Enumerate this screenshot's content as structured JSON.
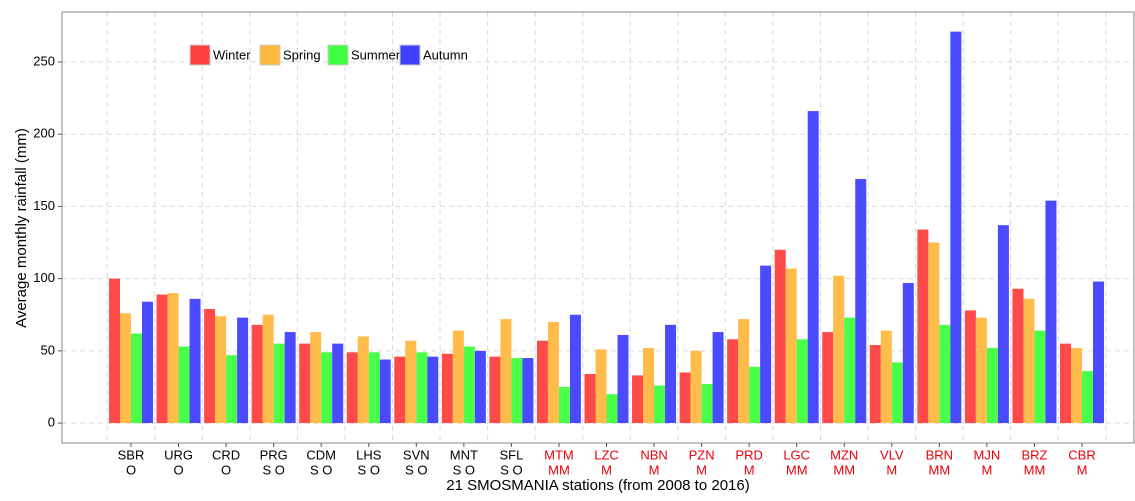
{
  "chart_data": {
    "type": "bar",
    "x_label": "21 SMOSMANIA stations (from 2008 to 2016)",
    "y_label": "Average monthly rainfall (mm)",
    "categories": [
      [
        "SBR",
        "O"
      ],
      [
        "URG",
        "O"
      ],
      [
        "CRD",
        "O"
      ],
      [
        "PRG",
        "S O"
      ],
      [
        "CDM",
        "S O"
      ],
      [
        "LHS",
        "S O"
      ],
      [
        "SVN",
        "S O"
      ],
      [
        "MNT",
        "S O"
      ],
      [
        "SFL",
        "S O"
      ],
      [
        "MTM",
        "MM"
      ],
      [
        "LZC",
        "M"
      ],
      [
        "NBN",
        "M"
      ],
      [
        "PZN",
        "M"
      ],
      [
        "PRD",
        "M"
      ],
      [
        "LGC",
        "MM"
      ],
      [
        "MZN",
        "MM"
      ],
      [
        "VLV",
        "M"
      ],
      [
        "BRN",
        "MM"
      ],
      [
        "MJN",
        "M"
      ],
      [
        "BRZ",
        "MM"
      ],
      [
        "CBR",
        "M"
      ]
    ],
    "category_colors": [
      "#000000",
      "#000000",
      "#000000",
      "#000000",
      "#000000",
      "#000000",
      "#000000",
      "#000000",
      "#000000",
      "#e8000b",
      "#e8000b",
      "#e8000b",
      "#e8000b",
      "#e8000b",
      "#e8000b",
      "#e8000b",
      "#e8000b",
      "#e8000b",
      "#e8000b",
      "#e8000b",
      "#e8000b"
    ],
    "series": [
      {
        "name": "Winter",
        "color": "#ff4040",
        "values": [
          100,
          89,
          79,
          68,
          55,
          49,
          46,
          48,
          46,
          57,
          34,
          33,
          35,
          58,
          120,
          63,
          54,
          134,
          78,
          93,
          55
        ]
      },
      {
        "name": "Spring",
        "color": "#ffb840",
        "values": [
          76,
          90,
          74,
          75,
          63,
          60,
          57,
          64,
          72,
          70,
          51,
          52,
          50,
          72,
          107,
          102,
          64,
          125,
          73,
          86,
          52
        ]
      },
      {
        "name": "Summer",
        "color": "#40ff40",
        "values": [
          62,
          53,
          47,
          55,
          49,
          49,
          49,
          53,
          45,
          25,
          20,
          26,
          27,
          39,
          58,
          73,
          42,
          68,
          52,
          64,
          36
        ]
      },
      {
        "name": "Autumn",
        "color": "#4040ff",
        "values": [
          84,
          86,
          73,
          63,
          55,
          44,
          46,
          50,
          45,
          75,
          61,
          68,
          63,
          109,
          216,
          169,
          97,
          271,
          137,
          154,
          98
        ]
      }
    ],
    "ylim": [
      -13.8,
      284.6
    ],
    "yticks": [
      0,
      50,
      100,
      150,
      200,
      250
    ],
    "grid": true,
    "legend_position": "top-left"
  }
}
